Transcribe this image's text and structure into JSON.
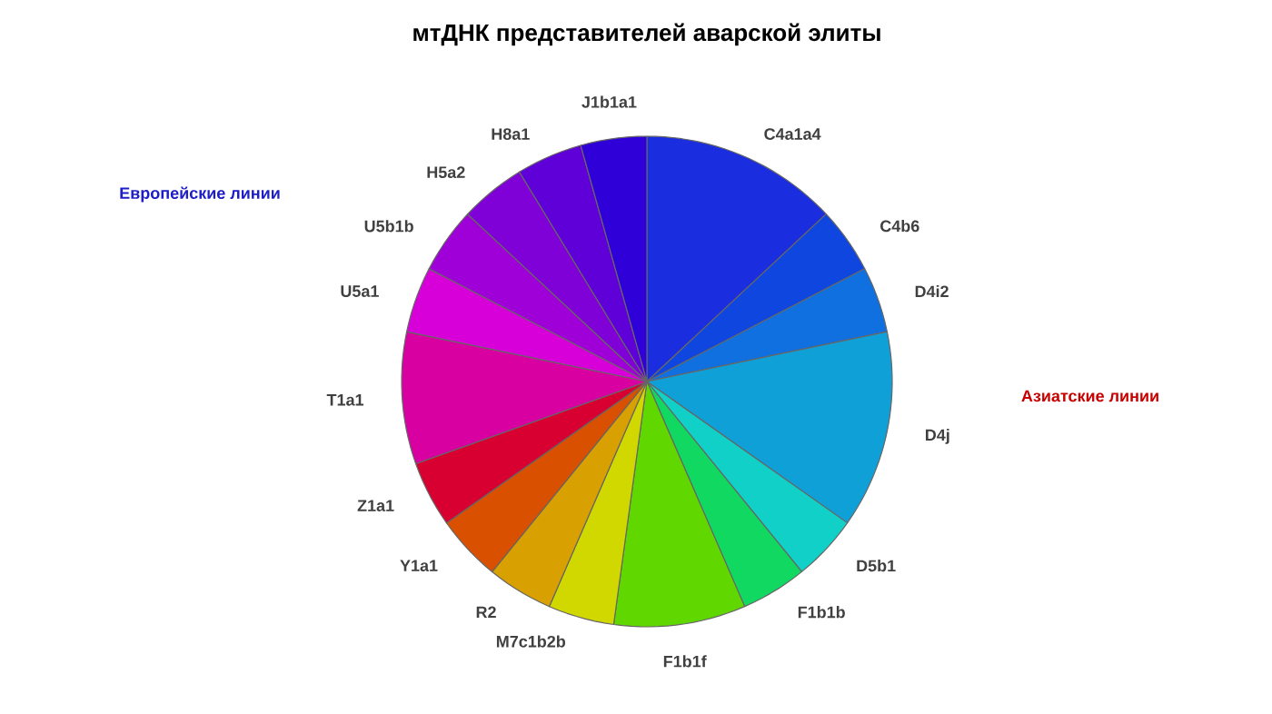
{
  "chart_data": {
    "type": "pie",
    "title": "мтДНК представителей аварской элиты",
    "categories": [
      "C4a1a4",
      "C4b6",
      "D4i2",
      "D4j",
      "D5b1",
      "F1b1b",
      "F1b1f",
      "M7c1b2b",
      "R2",
      "Y1a1",
      "Z1a1",
      "T1a1",
      "U5a1",
      "U5b1b",
      "H5a2",
      "H8a1",
      "J1b1a1"
    ],
    "values": [
      13.04,
      4.35,
      4.35,
      13.04,
      4.35,
      4.35,
      8.69,
      4.35,
      4.35,
      4.35,
      4.35,
      8.69,
      4.35,
      4.35,
      4.35,
      4.35,
      4.35
    ],
    "colors": [
      "#1a2ee0",
      "#1046e0",
      "#1070e0",
      "#10a0d8",
      "#10d0c8",
      "#10d860",
      "#60d800",
      "#d0d800",
      "#d8a000",
      "#d85000",
      "#d80030",
      "#d800a0",
      "#d800d8",
      "#a000d8",
      "#8000d8",
      "#6000d8",
      "#3000d8"
    ],
    "annotations": [
      "Европейские линии",
      "Азиатские линии"
    ]
  }
}
